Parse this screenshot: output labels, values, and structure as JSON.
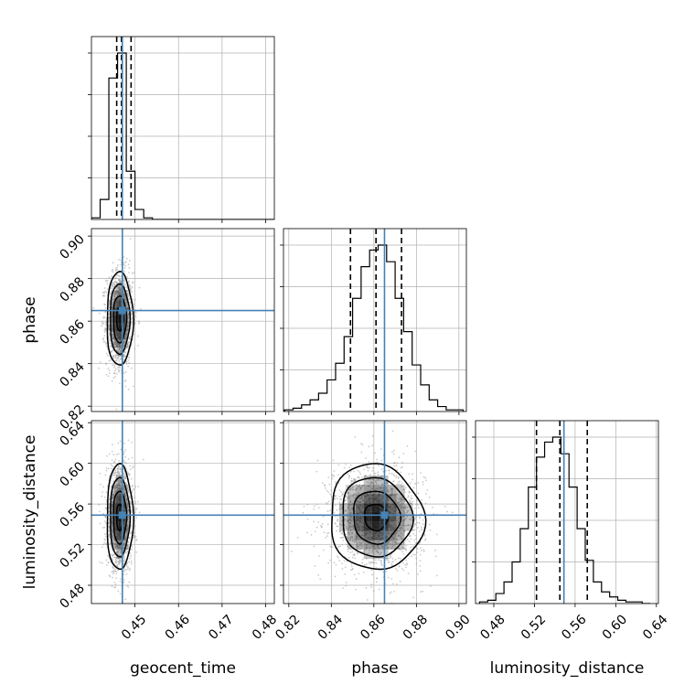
{
  "chart_data": {
    "type": "corner",
    "parameters": [
      {
        "key": "geocent_time",
        "label": "geocent_time",
        "range": [
          0.44,
          0.482
        ],
        "ticks": [
          0.45,
          0.46,
          0.47,
          0.48
        ],
        "tick_labels": [
          "0.45",
          "0.46",
          "0.47",
          "0.48"
        ],
        "truth": 0.4471,
        "quantiles": [
          0.4458,
          0.4469,
          0.4491
        ],
        "histogram": {
          "bin_edges": [
            0.44,
            0.442,
            0.444,
            0.446,
            0.448,
            0.45,
            0.452,
            0.454,
            0.456,
            0.458,
            0.46,
            0.462,
            0.464,
            0.466,
            0.468,
            0.47,
            0.472,
            0.474,
            0.476,
            0.478,
            0.48,
            0.482
          ],
          "counts": [
            0.01,
            0.12,
            0.85,
            1.0,
            0.29,
            0.06,
            0.01,
            0,
            0,
            0,
            0,
            0,
            0,
            0,
            0,
            0,
            0,
            0,
            0,
            0,
            0
          ]
        }
      },
      {
        "key": "phase",
        "label": "phase",
        "range": [
          0.8175,
          0.9035
        ],
        "ticks": [
          0.82,
          0.84,
          0.86,
          0.88,
          0.9
        ],
        "tick_labels": [
          "0.82",
          "0.84",
          "0.86",
          "0.88",
          "0.90"
        ],
        "truth": 0.865,
        "quantiles": [
          0.849,
          0.861,
          0.873
        ],
        "histogram": {
          "bin_edges": [
            0.818,
            0.822,
            0.826,
            0.83,
            0.834,
            0.838,
            0.842,
            0.846,
            0.85,
            0.854,
            0.858,
            0.862,
            0.866,
            0.87,
            0.874,
            0.878,
            0.882,
            0.886,
            0.89,
            0.894,
            0.898,
            0.902
          ],
          "counts": [
            0.01,
            0.02,
            0.04,
            0.07,
            0.11,
            0.19,
            0.29,
            0.45,
            0.68,
            0.87,
            0.97,
            1.0,
            0.9,
            0.68,
            0.48,
            0.28,
            0.16,
            0.07,
            0.03,
            0.01,
            0.01
          ]
        }
      },
      {
        "key": "luminosity_distance",
        "label": "luminosity_distance",
        "range": [
          0.462,
          0.642
        ],
        "ticks": [
          0.48,
          0.52,
          0.56,
          0.6,
          0.64
        ],
        "tick_labels": [
          "0.48",
          "0.52",
          "0.56",
          "0.60",
          "0.64"
        ],
        "truth": 0.549,
        "quantiles": [
          0.522,
          0.545,
          0.572
        ],
        "histogram": {
          "bin_edges": [
            0.466,
            0.474,
            0.482,
            0.49,
            0.498,
            0.506,
            0.514,
            0.522,
            0.53,
            0.538,
            0.546,
            0.554,
            0.562,
            0.57,
            0.578,
            0.586,
            0.594,
            0.602,
            0.61,
            0.618,
            0.626,
            0.634
          ],
          "counts": [
            0.01,
            0.02,
            0.06,
            0.13,
            0.25,
            0.45,
            0.7,
            0.88,
            0.97,
            1.0,
            0.9,
            0.7,
            0.45,
            0.26,
            0.13,
            0.07,
            0.04,
            0.02,
            0.01,
            0.01,
            0
          ]
        }
      }
    ],
    "pairs": [
      {
        "x": "geocent_time",
        "y": "phase",
        "center": [
          0.4465,
          0.861
        ],
        "sigma": [
          0.0015,
          0.011
        ],
        "correlation": 0.0
      },
      {
        "x": "geocent_time",
        "y": "luminosity_distance",
        "center": [
          0.4465,
          0.547
        ],
        "sigma": [
          0.0015,
          0.026
        ],
        "correlation": 0.0
      },
      {
        "x": "phase",
        "y": "luminosity_distance",
        "center": [
          0.861,
          0.547
        ],
        "sigma": [
          0.011,
          0.026
        ],
        "correlation": -0.05
      }
    ],
    "contour_levels_sigma": [
      0.5,
      1.0,
      1.5,
      2.0
    ],
    "colors": {
      "truth": "#4682b4",
      "histogram": "#000000",
      "density": "#000000",
      "grid": "#b0b0b0",
      "points": "#a0a0a0"
    },
    "grid": true,
    "legend": "none"
  }
}
